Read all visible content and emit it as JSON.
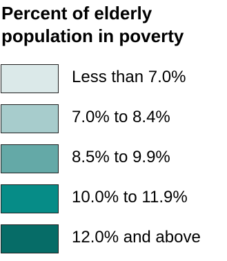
{
  "chart_data": {
    "type": "legend",
    "title_lines": [
      "Percent of elderly",
      "population in poverty"
    ],
    "items": [
      {
        "label": "Less than 7.0%",
        "color": "#dbe9e9"
      },
      {
        "label": "7.0% to 8.4%",
        "color": "#a7cccc"
      },
      {
        "label": "8.5% to 9.9%",
        "color": "#64a9a7"
      },
      {
        "label": "10.0% to 11.9%",
        "color": "#068c87"
      },
      {
        "label": "12.0% and above",
        "color": "#066c67"
      }
    ]
  }
}
